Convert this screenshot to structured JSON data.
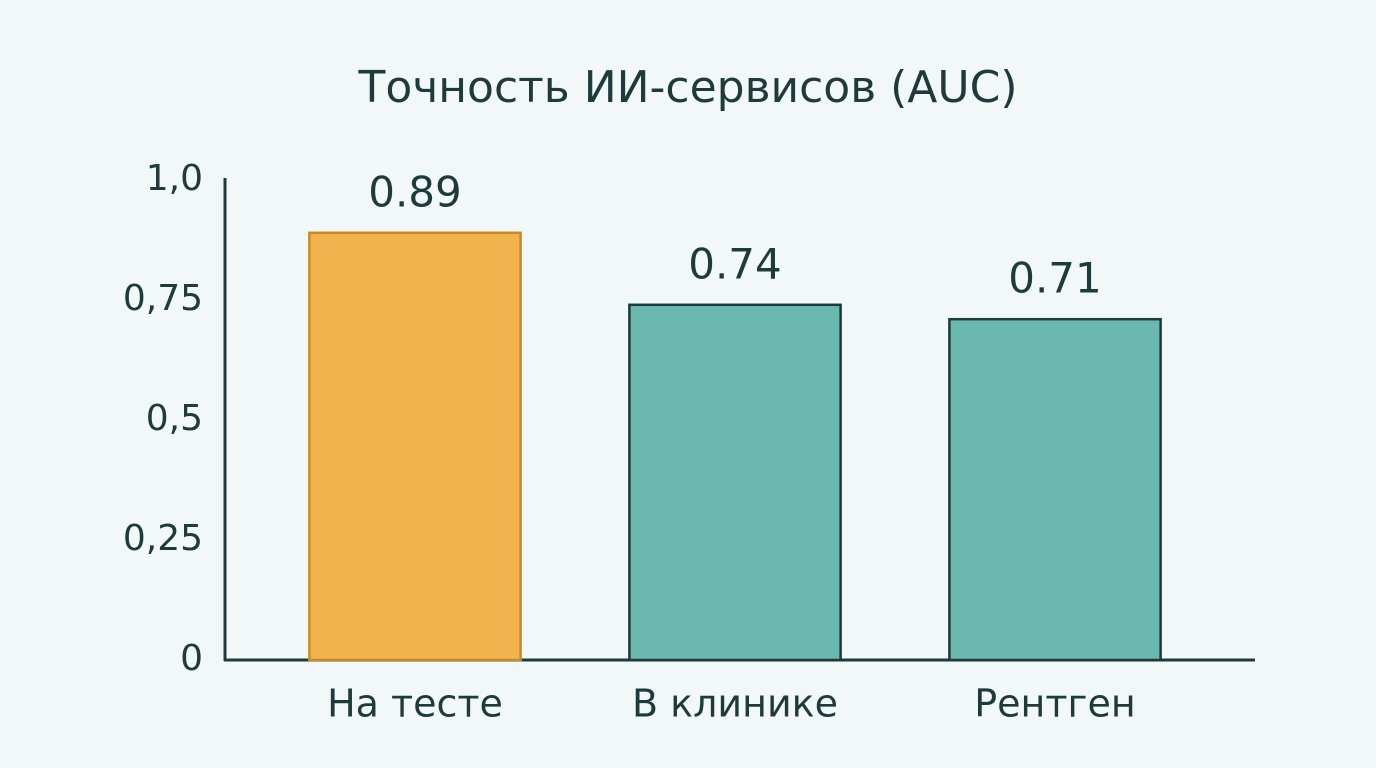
{
  "chart_data": {
    "type": "bar",
    "title": "Точность ИИ-сервисов (AUC)",
    "categories": [
      "На тесте",
      "В клинике",
      "Рентген"
    ],
    "values": [
      0.89,
      0.74,
      0.71
    ],
    "colors": [
      "#f2b24e",
      "#6bb8b0",
      "#6bb8b0"
    ],
    "ylim": [
      0,
      1
    ],
    "yticks": [
      0,
      {
        "value": 0.25,
        "label": "0,25"
      },
      {
        "value": 0.5,
        "label": "0,5"
      },
      {
        "value": 0.75,
        "label": "0,75"
      },
      {
        "value": 1,
        "label": "1,0"
      }
    ],
    "grid": false
  }
}
